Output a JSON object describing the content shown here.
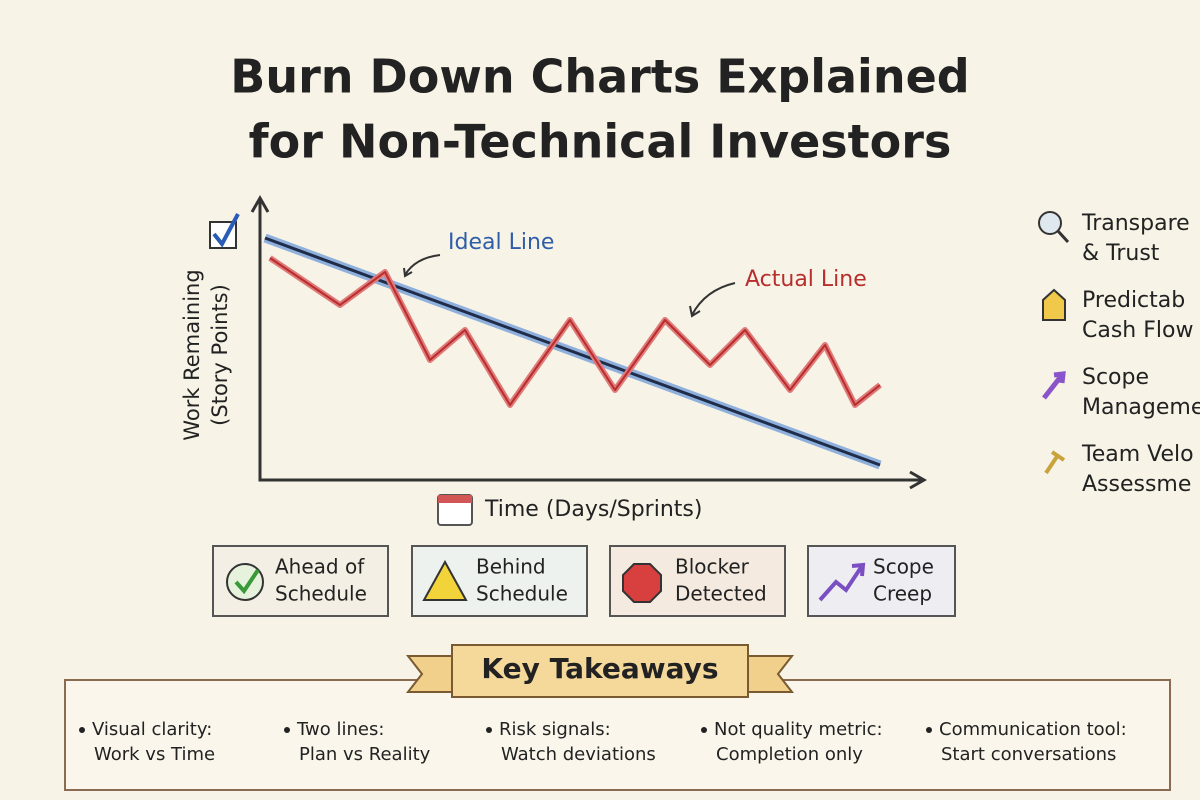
{
  "header": {
    "title_lines": [
      "Burn Down Charts Explained",
      "for Non-Technical Investors"
    ]
  },
  "chart": {
    "y_axis_label": [
      "Work Remaining",
      "(Story Points)"
    ],
    "x_axis_label": "Time (Days/Sprints)",
    "ideal_label": "Ideal Line",
    "actual_label": "Actual Line"
  },
  "benefits": [
    {
      "lines": [
        "Transpare",
        "& Trust"
      ]
    },
    {
      "lines": [
        "Predictab",
        "Cash Flow"
      ]
    },
    {
      "lines": [
        "Scope",
        "Manageme"
      ]
    },
    {
      "lines": [
        "Team Velo",
        "Assessme"
      ]
    }
  ],
  "status_badges": [
    {
      "lines": [
        "Ahead of",
        "Schedule"
      ]
    },
    {
      "lines": [
        "Behind",
        "Schedule"
      ]
    },
    {
      "lines": [
        "Blocker",
        "Detected"
      ]
    },
    {
      "lines": [
        "Scope",
        "Creep"
      ]
    }
  ],
  "takeaways": {
    "title": "Key Takeaways",
    "items": [
      {
        "lines": [
          "Visual clarity:",
          "Work vs Time"
        ]
      },
      {
        "lines": [
          "Two lines:",
          "Plan vs Reality"
        ]
      },
      {
        "lines": [
          "Risk signals:",
          "Watch deviations"
        ]
      },
      {
        "lines": [
          "Not quality metric:",
          "Completion only"
        ]
      },
      {
        "lines": [
          "Communication tool:",
          "Start conversations"
        ]
      }
    ]
  }
}
